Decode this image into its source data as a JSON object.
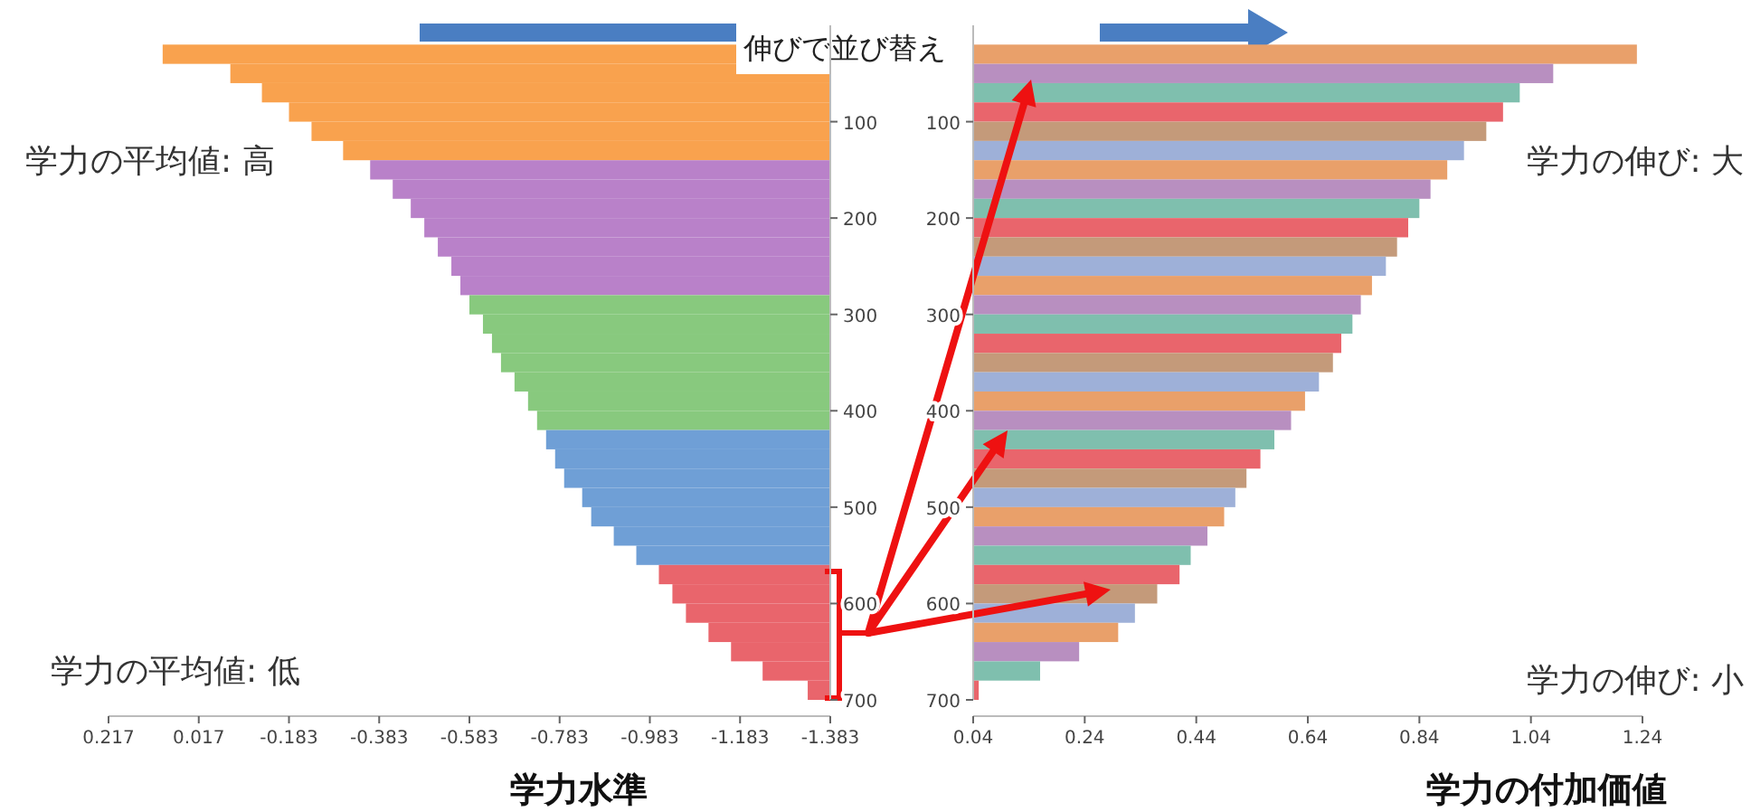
{
  "chart_data": [
    {
      "type": "bar",
      "orientation": "horizontal",
      "xlabel": "学力水準",
      "annotations": [
        "学力の平均値: 高",
        "学力の平均値: 低",
        "伸びで並び替え"
      ],
      "x": [
        30,
        50,
        70,
        90,
        110,
        130,
        150,
        170,
        190,
        210,
        230,
        250,
        270,
        290,
        310,
        330,
        350,
        370,
        390,
        410,
        430,
        450,
        470,
        490,
        510,
        530,
        550,
        570,
        590,
        610,
        630,
        650,
        670,
        690
      ],
      "values": [
        1.48,
        1.33,
        1.26,
        1.2,
        1.15,
        1.08,
        1.02,
        0.97,
        0.93,
        0.9,
        0.87,
        0.84,
        0.82,
        0.8,
        0.77,
        0.75,
        0.73,
        0.7,
        0.67,
        0.65,
        0.63,
        0.61,
        0.59,
        0.55,
        0.53,
        0.48,
        0.43,
        0.38,
        0.35,
        0.32,
        0.27,
        0.22,
        0.15,
        0.05
      ],
      "colors": [
        "#f9a24e",
        "#f9a24e",
        "#f9a24e",
        "#f9a24e",
        "#f9a24e",
        "#f9a24e",
        "#b981c9",
        "#b981c9",
        "#b981c9",
        "#b981c9",
        "#b981c9",
        "#b981c9",
        "#b981c9",
        "#88c97e",
        "#88c97e",
        "#88c97e",
        "#88c97e",
        "#88c97e",
        "#88c97e",
        "#88c97e",
        "#6f9fd6",
        "#6f9fd6",
        "#6f9fd6",
        "#6f9fd6",
        "#6f9fd6",
        "#6f9fd6",
        "#6f9fd6",
        "#e9656c",
        "#e9656c",
        "#e9656c",
        "#e9656c",
        "#e9656c",
        "#e9656c",
        "#e9656c"
      ],
      "base": [
        -1.383,
        -1.383,
        -1.383,
        -1.383,
        -1.383,
        -1.383,
        -1.383,
        -1.383,
        -1.383,
        -1.383,
        -1.383,
        -1.383,
        -1.383,
        -1.383,
        -1.383,
        -1.383,
        -1.383,
        -1.383,
        -1.383,
        -1.383,
        -1.383,
        -1.383,
        -1.383,
        -1.383,
        -1.383,
        -1.383,
        -1.383,
        -1.383,
        -1.383,
        -1.383,
        -1.383,
        -1.383,
        -1.383,
        -1.383
      ],
      "xlim": [
        0.217,
        -1.383
      ],
      "xticks": [
        0.217,
        0.017,
        -0.183,
        -0.383,
        -0.583,
        -0.783,
        -0.983,
        -1.183,
        -1.383
      ],
      "ylim": [
        700,
        0
      ],
      "yticks": [
        100,
        200,
        300,
        400,
        500,
        600,
        700
      ]
    },
    {
      "type": "bar",
      "orientation": "horizontal",
      "xlabel": "学力の付加価値",
      "annotations": [
        "学力の伸び: 大",
        "学力の伸び: 小"
      ],
      "x": [
        30,
        50,
        70,
        90,
        110,
        130,
        150,
        170,
        190,
        210,
        230,
        250,
        270,
        290,
        310,
        330,
        350,
        370,
        390,
        410,
        430,
        450,
        470,
        490,
        510,
        530,
        550,
        570,
        590,
        610,
        630,
        650,
        670,
        690
      ],
      "values": [
        1.19,
        1.04,
        0.98,
        0.95,
        0.92,
        0.88,
        0.85,
        0.82,
        0.8,
        0.78,
        0.76,
        0.74,
        0.715,
        0.695,
        0.68,
        0.66,
        0.645,
        0.62,
        0.595,
        0.57,
        0.54,
        0.515,
        0.49,
        0.47,
        0.45,
        0.42,
        0.39,
        0.37,
        0.33,
        0.29,
        0.26,
        0.19,
        0.12,
        0.01
      ],
      "colors": [
        "#e9a06a",
        "#b88fc0",
        "#7fbfae",
        "#e9656c",
        "#c49a7a",
        "#9eb0d8",
        "#e9a06a",
        "#b88fc0",
        "#7fbfae",
        "#e9656c",
        "#c49a7a",
        "#9eb0d8",
        "#e9a06a",
        "#b88fc0",
        "#7fbfae",
        "#e9656c",
        "#c49a7a",
        "#9eb0d8",
        "#e9a06a",
        "#b88fc0",
        "#7fbfae",
        "#e9656c",
        "#c49a7a",
        "#9eb0d8",
        "#e9a06a",
        "#b88fc0",
        "#7fbfae",
        "#e9656c",
        "#c49a7a",
        "#9eb0d8",
        "#e9a06a",
        "#b88fc0",
        "#7fbfae",
        "#e9656c"
      ],
      "base": [
        0.04,
        0.04,
        0.04,
        0.04,
        0.04,
        0.04,
        0.04,
        0.04,
        0.04,
        0.04,
        0.04,
        0.04,
        0.04,
        0.04,
        0.04,
        0.04,
        0.04,
        0.04,
        0.04,
        0.04,
        0.04,
        0.04,
        0.04,
        0.04,
        0.04,
        0.04,
        0.04,
        0.04,
        0.04,
        0.04,
        0.04,
        0.04,
        0.04,
        0.04
      ],
      "xlim": [
        0.04,
        1.24
      ],
      "xticks": [
        0.04,
        0.24,
        0.44,
        0.64,
        0.84,
        1.04,
        1.24
      ],
      "ylim": [
        700,
        0
      ],
      "yticks": [
        100,
        200,
        300,
        400,
        500,
        600,
        700
      ]
    }
  ]
}
